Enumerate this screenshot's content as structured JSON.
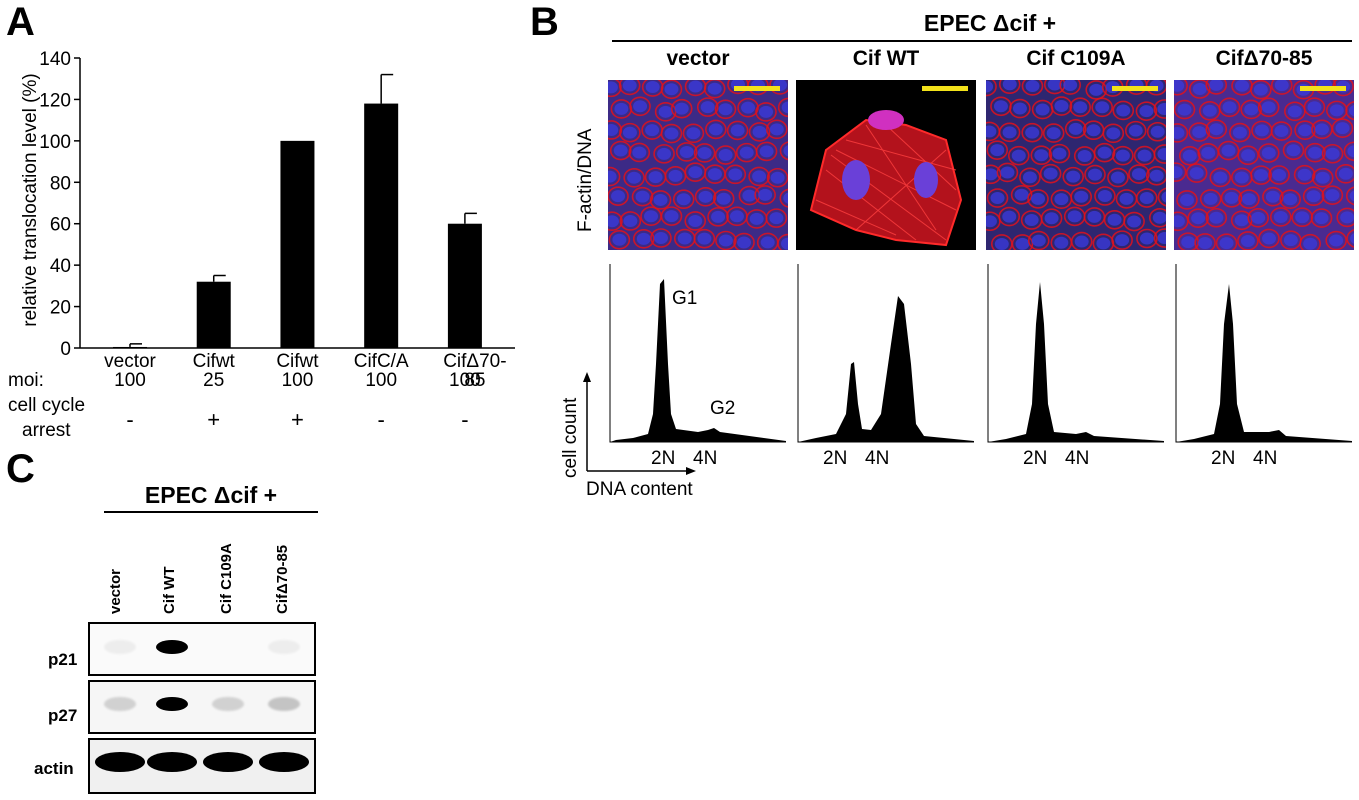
{
  "panel_a": {
    "letter": "A",
    "row_labels": {
      "moi": "moi:",
      "cell_cycle_1": "cell cycle",
      "cell_cycle_2": "arrest"
    },
    "groups": [
      {
        "name": "vector",
        "moi": "100",
        "arrest": "-"
      },
      {
        "name": "Cifwt",
        "moi": "25",
        "arrest": "+"
      },
      {
        "name": "Cifwt",
        "moi": "100",
        "arrest": "+"
      },
      {
        "name": "CifC/A",
        "moi": "100",
        "arrest": "-"
      },
      {
        "name": "CifΔ70-85",
        "moi": "100",
        "arrest": "-"
      }
    ]
  },
  "chart_data": {
    "type": "bar",
    "categories": [
      "vector",
      "Cifwt",
      "Cifwt",
      "CifC/A",
      "CifΔ70-85"
    ],
    "values": [
      0.5,
      32,
      100,
      118,
      60
    ],
    "error": [
      1.5,
      3,
      0,
      14,
      5
    ],
    "ylabel": "relative translocation level (%)",
    "xlabel": "",
    "ylim": [
      0,
      140
    ],
    "yticks": [
      0,
      20,
      40,
      60,
      80,
      100,
      120,
      140
    ],
    "bar_color": "#000000",
    "grid": false
  },
  "panel_b": {
    "letter": "B",
    "header": "EPEC Δcif +",
    "columns": [
      "vector",
      "Cif WT",
      "Cif C109A",
      "CifΔ70-85"
    ],
    "image_row_label": "F-actin/DNA",
    "y_axis_label": "cell count",
    "x_axis_label": "DNA content",
    "peak_labels": {
      "g1": "G1",
      "g2": "G2"
    },
    "ploidy_labels": {
      "n2": "2N",
      "n4": "4N"
    },
    "colors": {
      "actin": "#e0121c",
      "dna": "#3a3ad8",
      "scale_bar": "#f2e21a"
    }
  },
  "panel_c": {
    "letter": "C",
    "header": "EPEC Δcif +",
    "lanes": [
      "vector",
      "Cif  WT",
      "Cif C109A",
      "CifΔ70-85"
    ],
    "rows": [
      {
        "label": "p21",
        "band_strength": [
          0.05,
          1.0,
          0.0,
          0.05
        ]
      },
      {
        "label": "p27",
        "band_strength": [
          0.15,
          1.0,
          0.15,
          0.2
        ]
      },
      {
        "label": "actin",
        "band_strength": [
          1.0,
          1.0,
          1.0,
          1.0
        ]
      }
    ]
  }
}
